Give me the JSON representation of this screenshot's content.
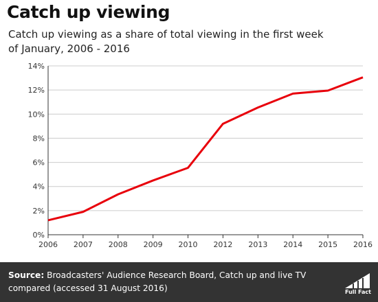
{
  "title": "Catch up viewing",
  "subtitle": "Catch up viewing as a share of total viewing in the first week of January, 2006 - 2016",
  "footer": {
    "source_label": "Source:",
    "source_text": " Broadcasters' Audience Research Board, Catch up and live TV compared (accessed 31 August 2016)",
    "logo_text": "Full Fact"
  },
  "colors": {
    "line": "#e8000b",
    "axis": "#333333",
    "grid": "#cccccc",
    "footer_bg": "#333333"
  },
  "chart_data": {
    "type": "line",
    "title": "Catch up viewing",
    "xlabel": "",
    "ylabel": "",
    "categories": [
      "2006",
      "2007",
      "2008",
      "2009",
      "2010",
      "2012",
      "2013",
      "2014",
      "2015",
      "2016"
    ],
    "series": [
      {
        "values": [
          1.2,
          1.9,
          3.35,
          4.5,
          5.55,
          9.2,
          10.55,
          11.7,
          11.95,
          13.05
        ]
      }
    ],
    "ylim": [
      0,
      14
    ],
    "yticks": [
      0,
      2,
      4,
      6,
      8,
      10,
      12,
      14
    ],
    "ytick_labels": [
      "0%",
      "2%",
      "4%",
      "6%",
      "8%",
      "10%",
      "12%",
      "14%"
    ],
    "grid": "horizontal",
    "legend": "none"
  }
}
